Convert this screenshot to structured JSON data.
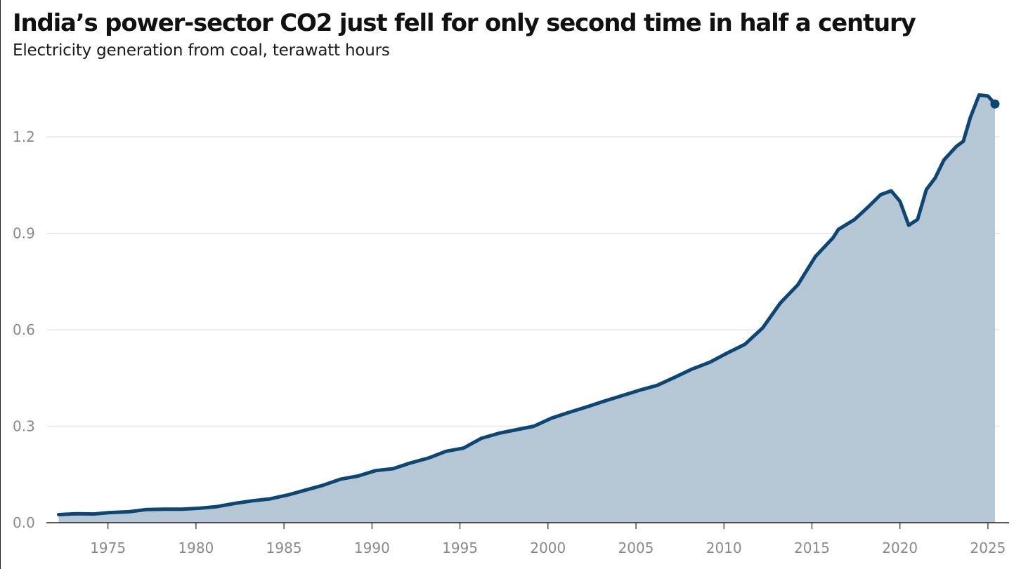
{
  "header": {
    "title": "India’s power-sector CO2 just fell for only second time in half a century",
    "subtitle": "Electricity generation from coal, terawatt hours"
  },
  "colors": {
    "line": "#0d4573",
    "area": "#b5c6d5",
    "grid": "#e3e3e3",
    "axis": "#222222",
    "tick_text": "#8a8a8a"
  },
  "chart_data": {
    "type": "area",
    "title": "India’s power-sector CO2 just fell for only second time in half a century",
    "subtitle": "Electricity generation from coal, terawatt hours",
    "xlabel": "",
    "ylabel": "",
    "xlim": [
      1971.5,
      2026.2
    ],
    "ylim": [
      0,
      1.35
    ],
    "x_ticks": [
      1975,
      1980,
      1985,
      1990,
      1995,
      2000,
      2005,
      2010,
      2015,
      2020,
      2025
    ],
    "y_ticks": [
      0.0,
      0.3,
      0.6,
      0.9,
      1.2
    ],
    "y_tick_labels": [
      "0.0",
      "0.3",
      "0.6",
      "0.9",
      "1.2"
    ],
    "grid": true,
    "legend": "none",
    "end_marker": true,
    "x": [
      1972.2,
      1973.2,
      1974.2,
      1975.0,
      1976.2,
      1977.2,
      1978.2,
      1979.2,
      1980.2,
      1981.2,
      1982.2,
      1983.2,
      1984.2,
      1985.2,
      1986.2,
      1987.2,
      1988.2,
      1989.2,
      1990.2,
      1991.2,
      1992.2,
      1993.2,
      1994.2,
      1995.2,
      1996.2,
      1997.2,
      1998.2,
      1999.2,
      2000.2,
      2001.2,
      2002.2,
      2003.2,
      2004.2,
      2005.2,
      2006.2,
      2007.2,
      2008.2,
      2009.2,
      2010.2,
      2011.2,
      2012.2,
      2013.2,
      2014.2,
      2015.2,
      2016.2,
      2016.5,
      2017.4,
      2018.2,
      2018.9,
      2019.5,
      2020.0,
      2020.5,
      2021.0,
      2021.5,
      2022.0,
      2022.5,
      2023.2,
      2023.6,
      2024.0,
      2024.5,
      2025.0,
      2025.4
    ],
    "values": [
      0.025,
      0.028,
      0.027,
      0.031,
      0.034,
      0.041,
      0.042,
      0.042,
      0.045,
      0.05,
      0.06,
      0.068,
      0.074,
      0.086,
      0.101,
      0.116,
      0.135,
      0.145,
      0.162,
      0.168,
      0.186,
      0.201,
      0.222,
      0.232,
      0.262,
      0.278,
      0.289,
      0.3,
      0.325,
      0.343,
      0.36,
      0.378,
      0.395,
      0.412,
      0.427,
      0.452,
      0.478,
      0.499,
      0.528,
      0.555,
      0.606,
      0.683,
      0.74,
      0.828,
      0.886,
      0.912,
      0.942,
      0.982,
      1.02,
      1.032,
      1.0,
      0.925,
      0.943,
      1.036,
      1.072,
      1.128,
      1.17,
      1.186,
      1.26,
      1.33,
      1.327,
      1.302
    ]
  }
}
